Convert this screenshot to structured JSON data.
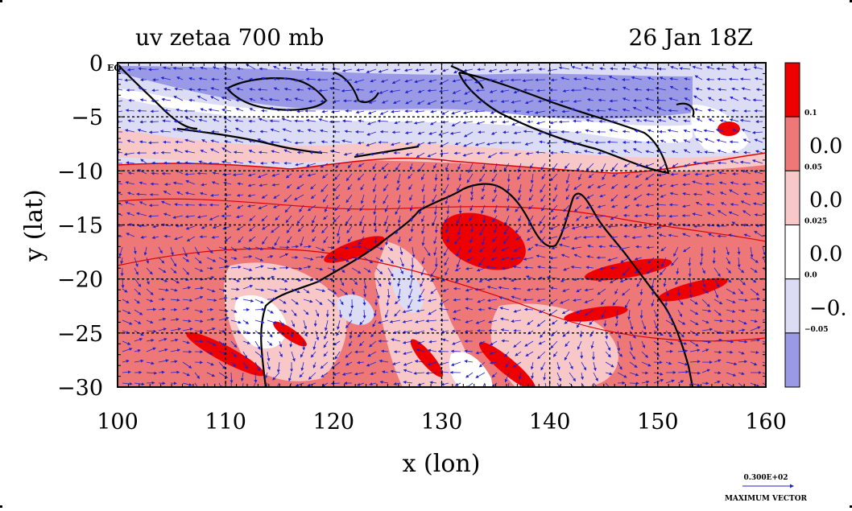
{
  "chart_data": {
    "type": "heatmap",
    "title_left": "uv zetaa 700 mb",
    "title_right": "26 Jan 18Z",
    "xlabel": "x (lon)",
    "ylabel": "y (lat)",
    "xlim": [
      100,
      160
    ],
    "ylim": [
      -30,
      0
    ],
    "x_ticks": [
      "100",
      "110",
      "120",
      "130",
      "140",
      "150",
      "160"
    ],
    "y_ticks": [
      "0",
      "−5",
      "−10",
      "−15",
      "−20",
      "−25",
      "−30"
    ],
    "grid": true,
    "colorbar": {
      "levels": [
        "0.1",
        "0.05",
        "0.025",
        "0.0",
        "−0.05"
      ],
      "side_labels": [
        "0.0",
        "0.0",
        "0.0",
        "−0."
      ],
      "colors": [
        "#ee0000",
        "#ee7777",
        "#f8c8c8",
        "#ffffff",
        "#dcdcf4",
        "#9999e6"
      ]
    },
    "reference_vector": {
      "value": "0.300E+02",
      "label": "MAXIMUM VECTOR"
    },
    "field_regions": [
      {
        "band": "0 to -10",
        "dominant_sign": "negative",
        "note": "blue/white band across northern part"
      },
      {
        "band": "-10 to -30",
        "dominant_sign": "positive",
        "note": "pink/red across continent and south"
      }
    ],
    "equator_label": "EQ",
    "coastline_color": "#000000",
    "vector_color": "#2222cc"
  }
}
